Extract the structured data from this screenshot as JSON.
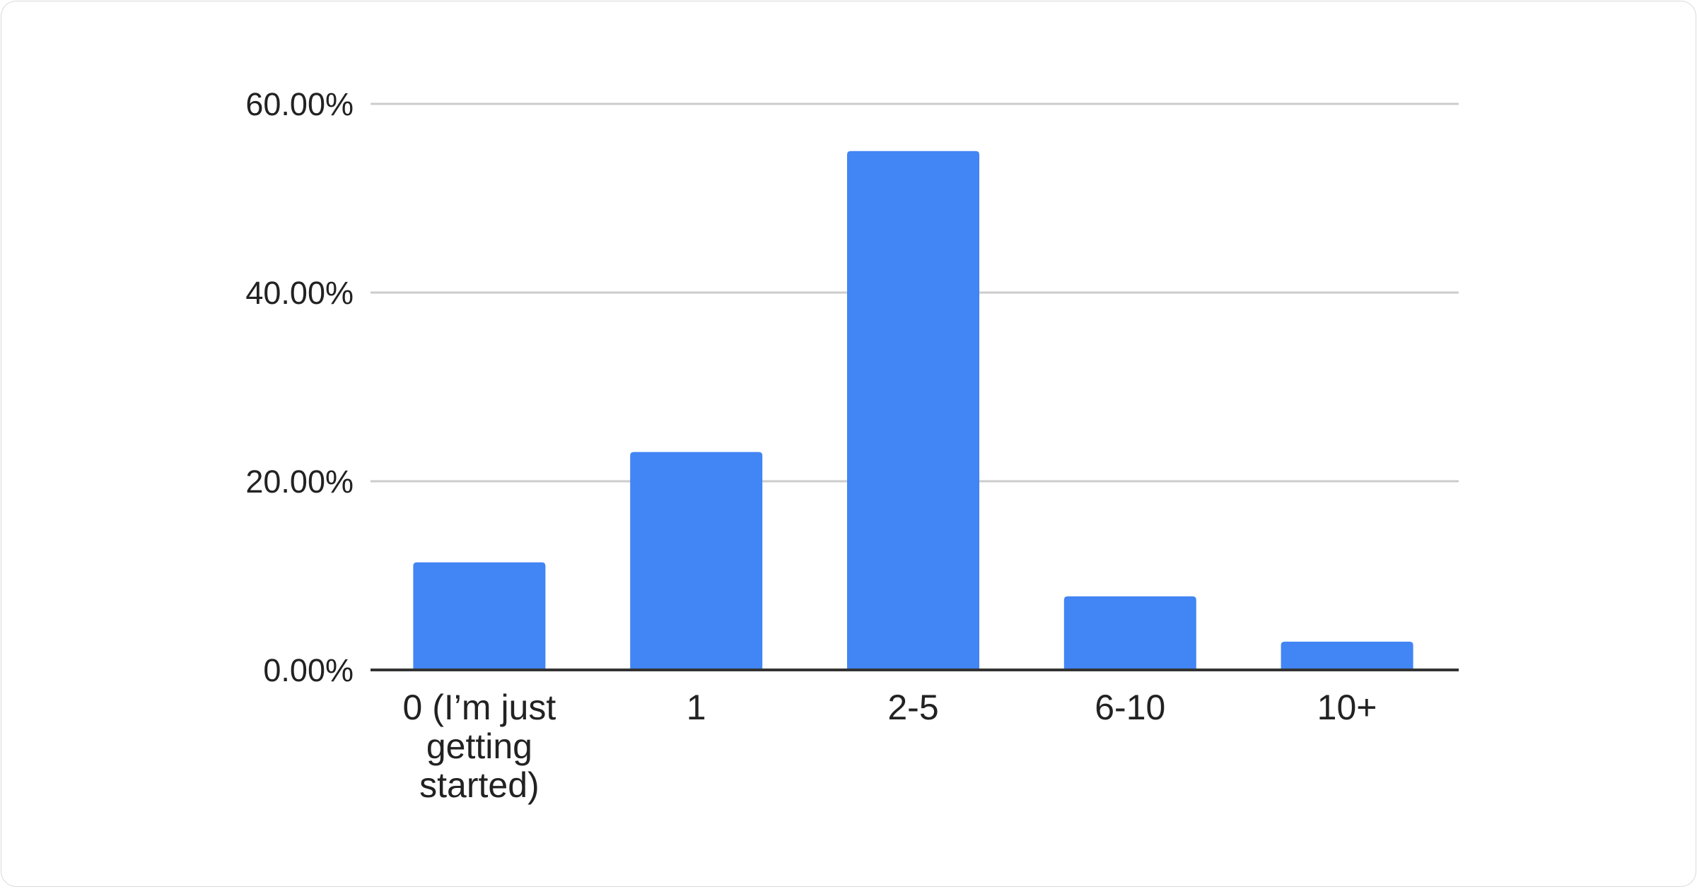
{
  "chart_data": {
    "type": "bar",
    "categories": [
      "0 (I’m just getting started)",
      "1",
      "2-5",
      "6-10",
      "10+"
    ],
    "category_lines": [
      [
        "0 (I’m just",
        "getting",
        "started)"
      ],
      [
        "1"
      ],
      [
        "2-5"
      ],
      [
        "6-10"
      ],
      [
        "10+"
      ]
    ],
    "values": [
      11.4,
      23.1,
      55.0,
      7.8,
      3.0
    ],
    "ylim": [
      0,
      60
    ],
    "yticks": [
      0,
      20,
      40,
      60
    ],
    "ytick_labels": [
      "0.00%",
      "20.00%",
      "40.00%",
      "60.00%"
    ],
    "title": "",
    "xlabel": "",
    "ylabel": "",
    "grid": true,
    "legend": "none",
    "bar_color": "#4285f4",
    "grid_color": "#cccccc",
    "axis_color": "#333333"
  }
}
